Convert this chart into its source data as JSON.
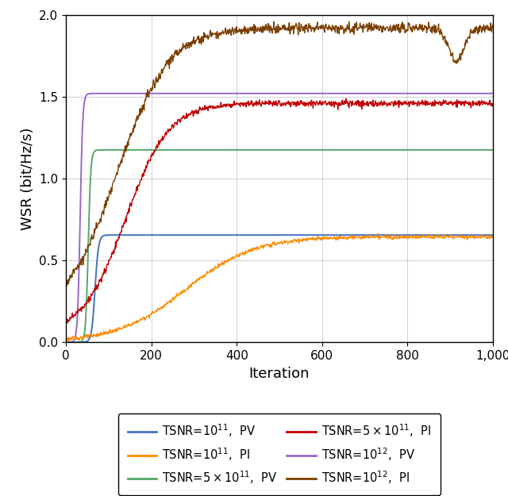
{
  "xlabel": "Iteration",
  "ylabel": "WSR (bit/Hz/s)",
  "xlim": [
    0,
    1000
  ],
  "ylim": [
    0,
    2.0
  ],
  "yticks": [
    0,
    0.5,
    1.0,
    1.5,
    2.0
  ],
  "xticks": [
    0,
    200,
    400,
    600,
    800,
    1000
  ],
  "legend_labels_left": [
    "TSNR=$10^{11}$,  PV",
    "TSNR=$5\\times10^{11}$,  PV",
    "TSNR=$10^{12}$,  PV"
  ],
  "legend_labels_right": [
    "TSNR=$10^{11}$,  PI",
    "TSNR=$5\\times10^{11}$,  PI",
    "TSNR=$10^{12}$,  PI"
  ],
  "colors": {
    "blue": "#4472C4",
    "green": "#55A868",
    "purple": "#9966CC",
    "orange": "#FF8C00",
    "red": "#C00000",
    "brown": "#7B3F00"
  },
  "figsize": [
    6.4,
    6.25
  ],
  "dpi": 100
}
